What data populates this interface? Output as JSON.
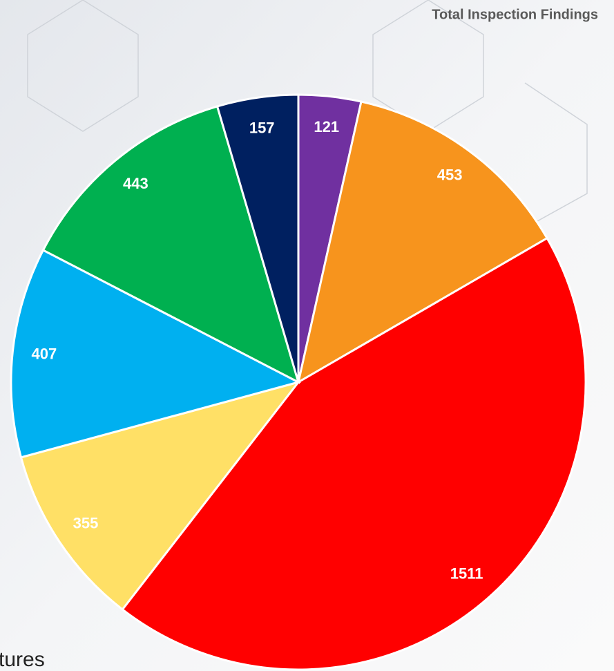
{
  "chart_data": {
    "type": "pie",
    "title": "Total Inspection Findings",
    "values": [
      121,
      453,
      1511,
      355,
      407,
      443,
      157
    ],
    "colors": [
      "#7030a0",
      "#f7941d",
      "#ff0000",
      "#ffe066",
      "#00b0f0",
      "#00b050",
      "#002060"
    ]
  },
  "caption": "tures"
}
